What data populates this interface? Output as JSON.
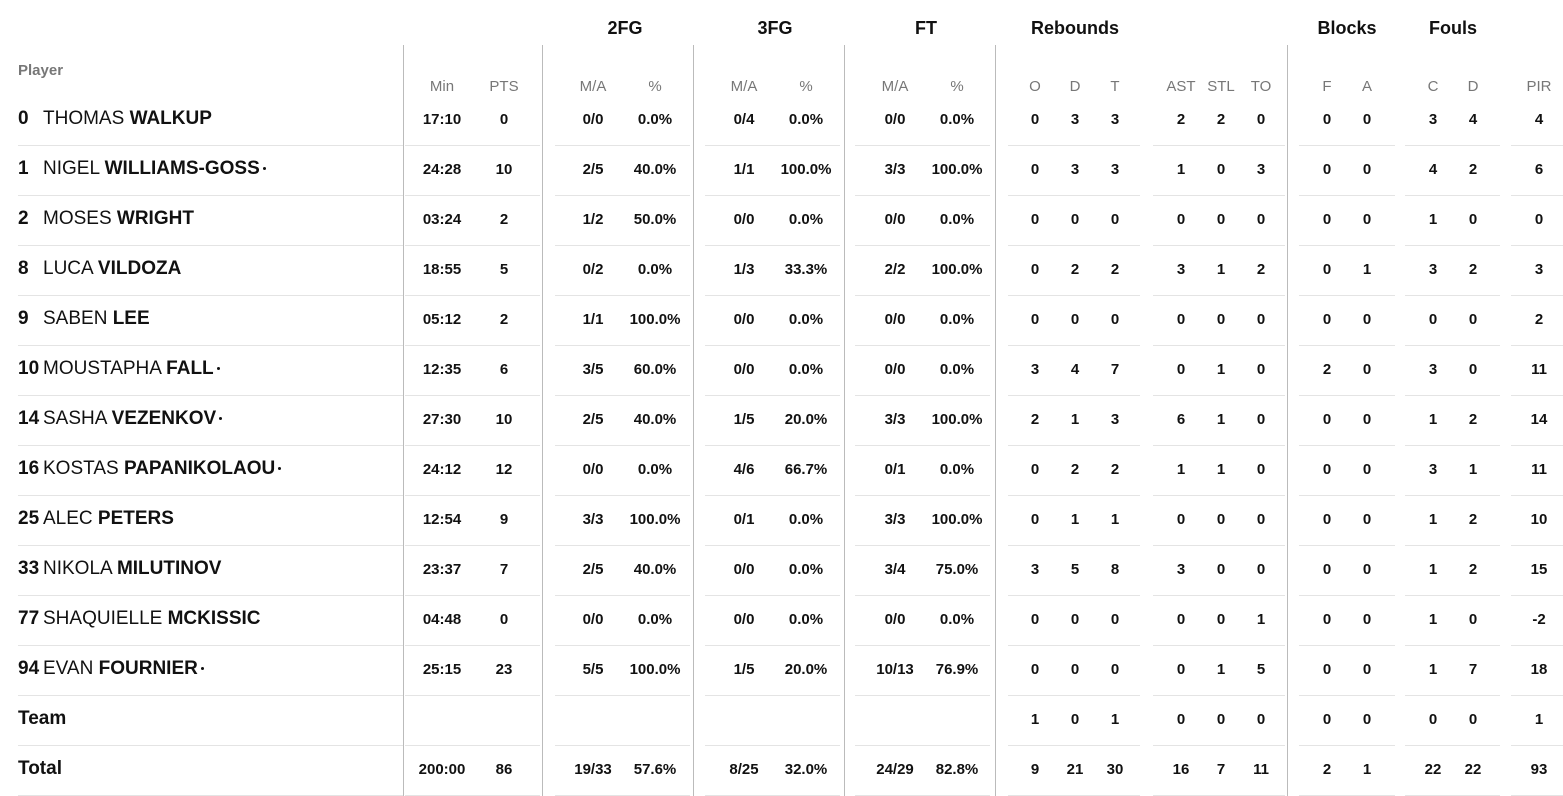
{
  "table": {
    "groups": [
      "2FG",
      "3FG",
      "FT",
      "Rebounds",
      "Blocks",
      "Fouls"
    ],
    "columns": [
      "Player",
      "Min",
      "PTS",
      "M/A",
      "%",
      "M/A",
      "%",
      "M/A",
      "%",
      "O",
      "D",
      "T",
      "AST",
      "STL",
      "TO",
      "F",
      "A",
      "C",
      "D",
      "PIR"
    ],
    "rows": [
      {
        "number": "0",
        "first": "THOMAS",
        "last": "WALKUP",
        "starter": false,
        "stats": [
          "17:10",
          "0",
          "0/0",
          "0.0%",
          "0/4",
          "0.0%",
          "0/0",
          "0.0%",
          "0",
          "3",
          "3",
          "2",
          "2",
          "0",
          "0",
          "0",
          "3",
          "4",
          "4"
        ]
      },
      {
        "number": "1",
        "first": "NIGEL",
        "last": "WILLIAMS-GOSS",
        "starter": true,
        "stats": [
          "24:28",
          "10",
          "2/5",
          "40.0%",
          "1/1",
          "100.0%",
          "3/3",
          "100.0%",
          "0",
          "3",
          "3",
          "1",
          "0",
          "3",
          "0",
          "0",
          "4",
          "2",
          "6"
        ]
      },
      {
        "number": "2",
        "first": "MOSES",
        "last": "WRIGHT",
        "starter": false,
        "stats": [
          "03:24",
          "2",
          "1/2",
          "50.0%",
          "0/0",
          "0.0%",
          "0/0",
          "0.0%",
          "0",
          "0",
          "0",
          "0",
          "0",
          "0",
          "0",
          "0",
          "1",
          "0",
          "0"
        ]
      },
      {
        "number": "8",
        "first": "LUCA",
        "last": "VILDOZA",
        "starter": false,
        "stats": [
          "18:55",
          "5",
          "0/2",
          "0.0%",
          "1/3",
          "33.3%",
          "2/2",
          "100.0%",
          "0",
          "2",
          "2",
          "3",
          "1",
          "2",
          "0",
          "1",
          "3",
          "2",
          "3"
        ]
      },
      {
        "number": "9",
        "first": "SABEN",
        "last": "LEE",
        "starter": false,
        "stats": [
          "05:12",
          "2",
          "1/1",
          "100.0%",
          "0/0",
          "0.0%",
          "0/0",
          "0.0%",
          "0",
          "0",
          "0",
          "0",
          "0",
          "0",
          "0",
          "0",
          "0",
          "0",
          "2"
        ]
      },
      {
        "number": "10",
        "first": "MOUSTAPHA",
        "last": "FALL",
        "starter": true,
        "stats": [
          "12:35",
          "6",
          "3/5",
          "60.0%",
          "0/0",
          "0.0%",
          "0/0",
          "0.0%",
          "3",
          "4",
          "7",
          "0",
          "1",
          "0",
          "2",
          "0",
          "3",
          "0",
          "11"
        ]
      },
      {
        "number": "14",
        "first": "SASHA",
        "last": "VEZENKOV",
        "starter": true,
        "stats": [
          "27:30",
          "10",
          "2/5",
          "40.0%",
          "1/5",
          "20.0%",
          "3/3",
          "100.0%",
          "2",
          "1",
          "3",
          "6",
          "1",
          "0",
          "0",
          "0",
          "1",
          "2",
          "14"
        ]
      },
      {
        "number": "16",
        "first": "KOSTAS",
        "last": "PAPANIKOLAOU",
        "starter": true,
        "stats": [
          "24:12",
          "12",
          "0/0",
          "0.0%",
          "4/6",
          "66.7%",
          "0/1",
          "0.0%",
          "0",
          "2",
          "2",
          "1",
          "1",
          "0",
          "0",
          "0",
          "3",
          "1",
          "11"
        ]
      },
      {
        "number": "25",
        "first": "ALEC",
        "last": "PETERS",
        "starter": false,
        "stats": [
          "12:54",
          "9",
          "3/3",
          "100.0%",
          "0/1",
          "0.0%",
          "3/3",
          "100.0%",
          "0",
          "1",
          "1",
          "0",
          "0",
          "0",
          "0",
          "0",
          "1",
          "2",
          "10"
        ]
      },
      {
        "number": "33",
        "first": "NIKOLA",
        "last": "MILUTINOV",
        "starter": false,
        "stats": [
          "23:37",
          "7",
          "2/5",
          "40.0%",
          "0/0",
          "0.0%",
          "3/4",
          "75.0%",
          "3",
          "5",
          "8",
          "3",
          "0",
          "0",
          "0",
          "0",
          "1",
          "2",
          "15"
        ]
      },
      {
        "number": "77",
        "first": "SHAQUIELLE",
        "last": "MCKISSIC",
        "starter": false,
        "stats": [
          "04:48",
          "0",
          "0/0",
          "0.0%",
          "0/0",
          "0.0%",
          "0/0",
          "0.0%",
          "0",
          "0",
          "0",
          "0",
          "0",
          "1",
          "0",
          "0",
          "1",
          "0",
          "-2"
        ]
      },
      {
        "number": "94",
        "first": "EVAN",
        "last": "FOURNIER",
        "starter": true,
        "stats": [
          "25:15",
          "23",
          "5/5",
          "100.0%",
          "1/5",
          "20.0%",
          "10/13",
          "76.9%",
          "0",
          "0",
          "0",
          "0",
          "1",
          "5",
          "0",
          "0",
          "1",
          "7",
          "18"
        ]
      }
    ],
    "summary": [
      {
        "name": "Team",
        "stats": [
          null,
          null,
          null,
          null,
          null,
          null,
          null,
          null,
          "1",
          "0",
          "1",
          "0",
          "0",
          "0",
          "0",
          "0",
          "0",
          "0",
          "1"
        ]
      },
      {
        "name": "Total",
        "stats": [
          "200:00",
          "86",
          "19/33",
          "57.6%",
          "8/25",
          "32.0%",
          "24/29",
          "82.8%",
          "9",
          "21",
          "30",
          "16",
          "7",
          "11",
          "2",
          "1",
          "22",
          "22",
          "93"
        ]
      }
    ]
  }
}
